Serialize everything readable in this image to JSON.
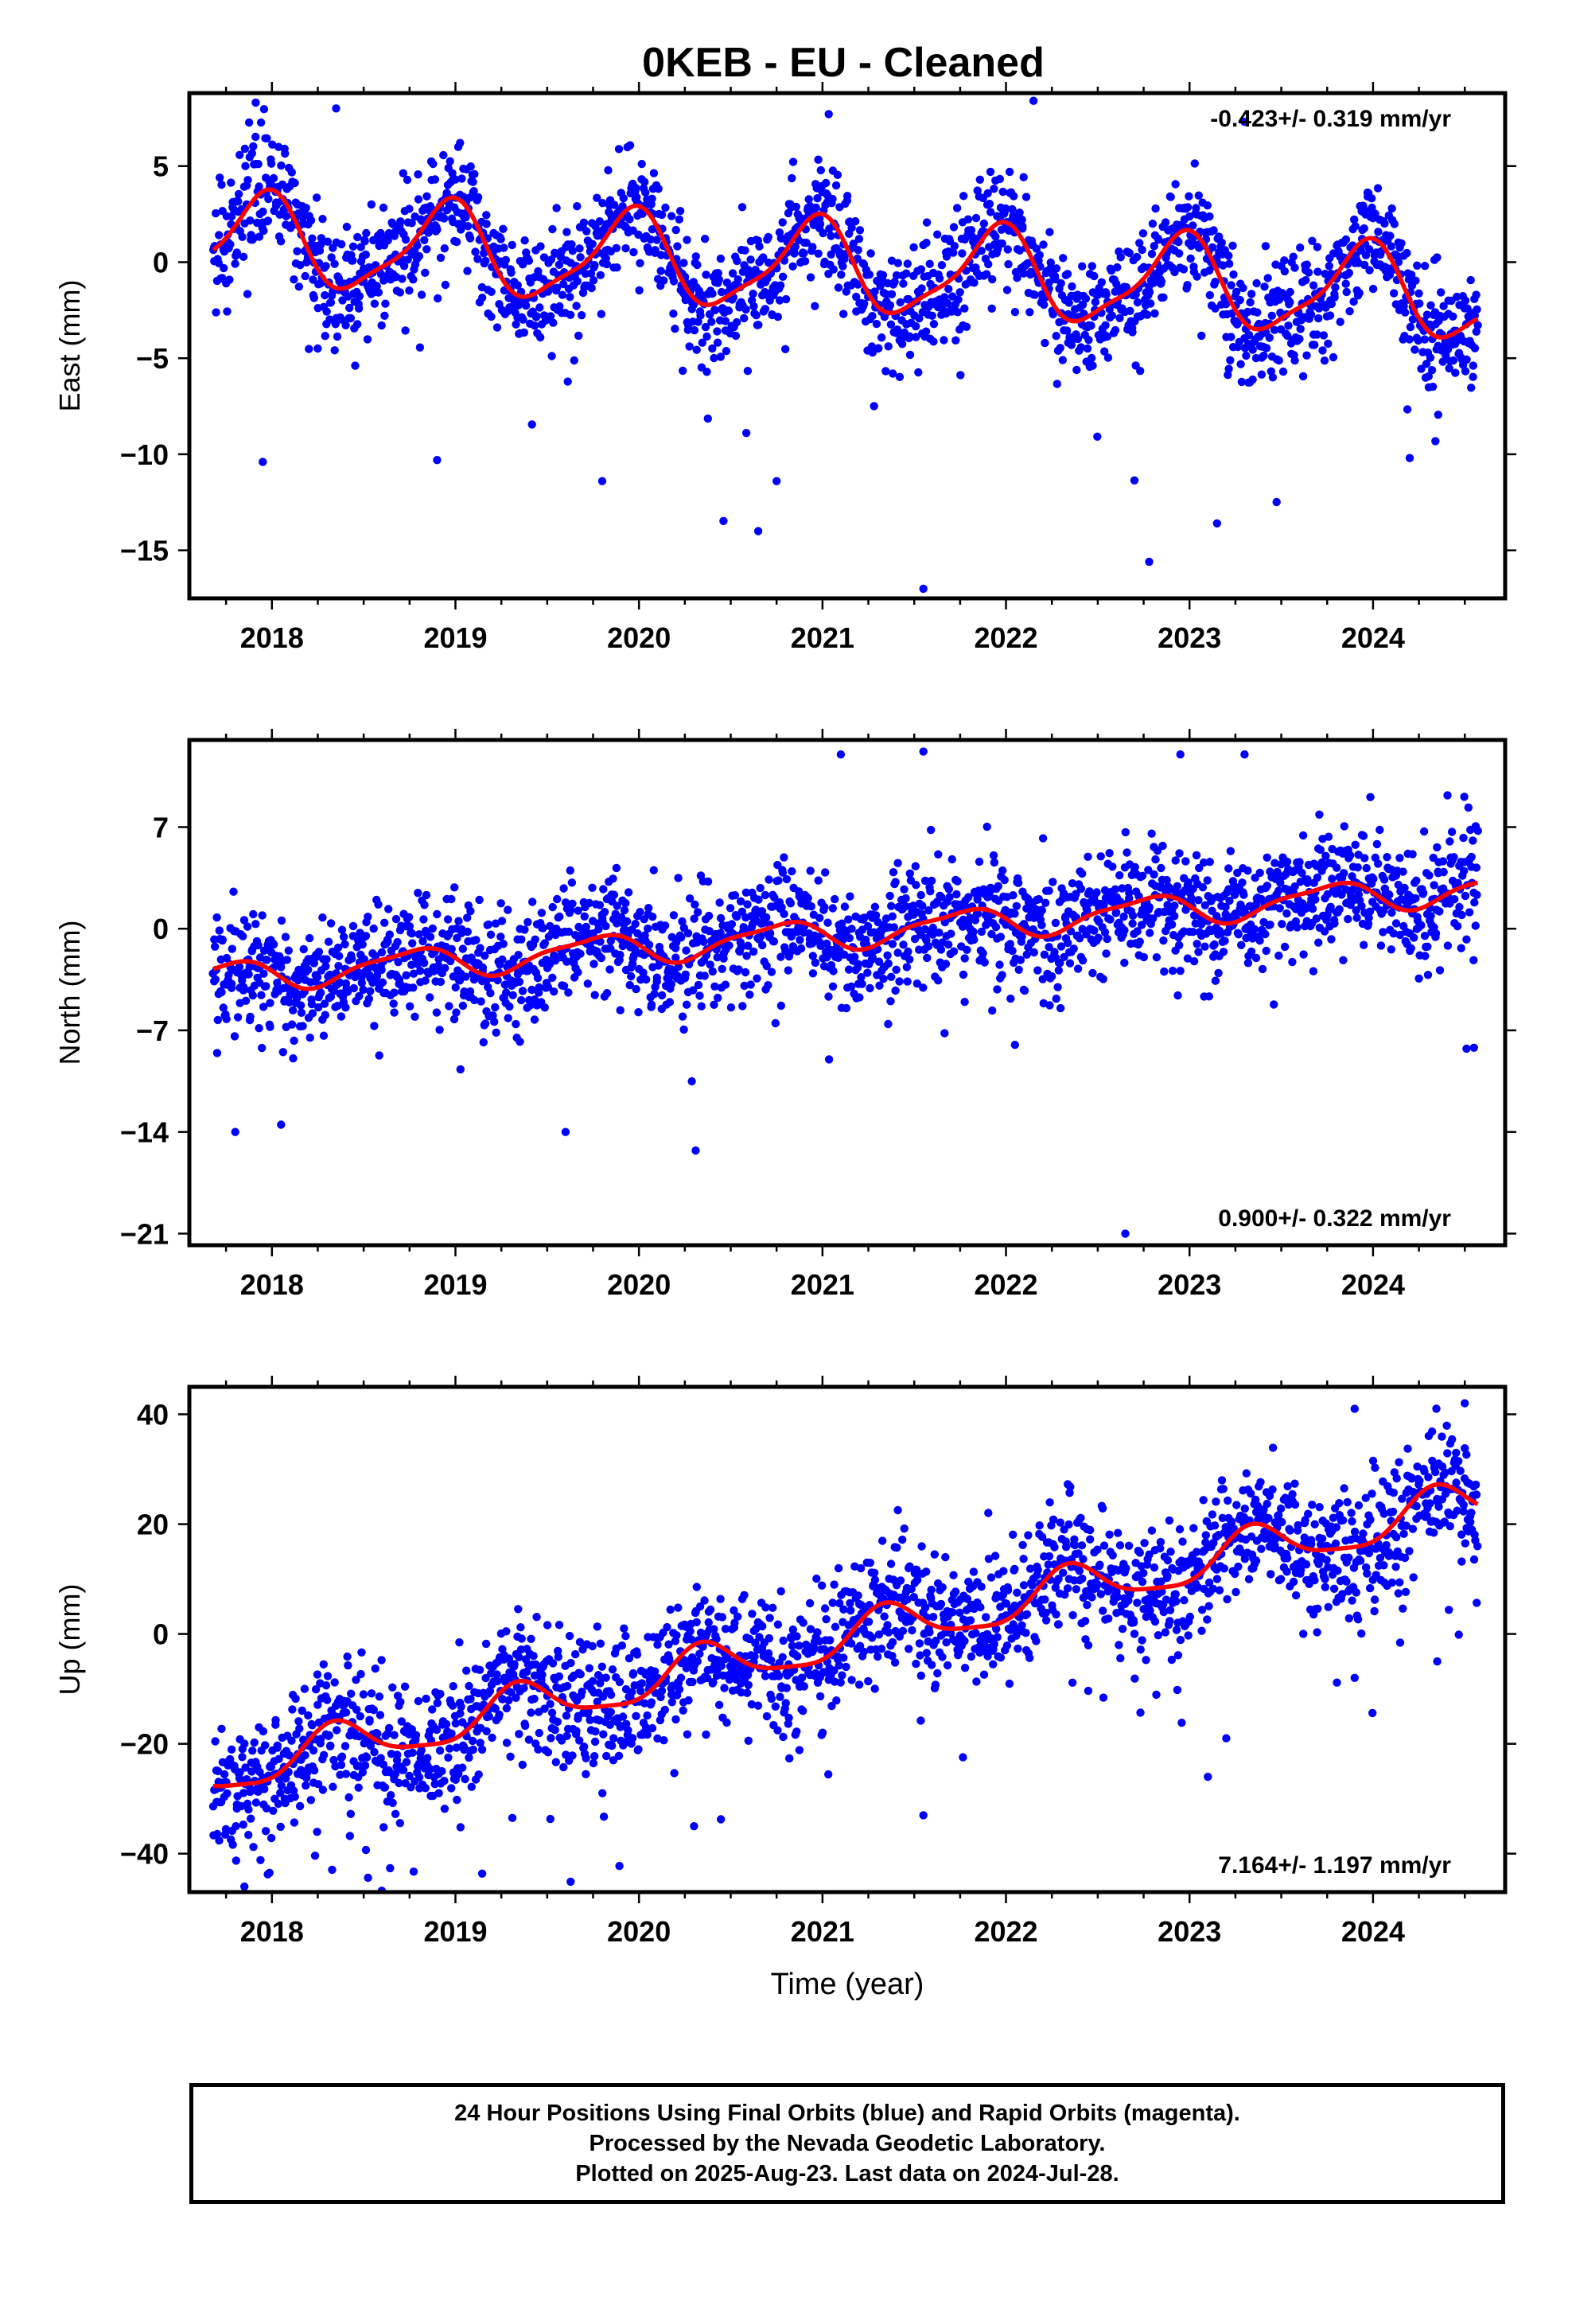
{
  "title": "0KEB  - EU - Cleaned",
  "footer": {
    "line1": "24 Hour Positions Using Final Orbits (blue) and Rapid Orbits (magenta).",
    "line2": "Processed by the Nevada Geodetic Laboratory.",
    "line3": "Plotted on 2025-Aug-23. Last data on 2024-Jul-28."
  },
  "colors": {
    "points": "#0000ff",
    "fit": "#ff0000",
    "axis": "#000000"
  },
  "chart_data": [
    {
      "type": "scatter",
      "name_hint": "east",
      "ylabel": "East (mm)",
      "xlabel": "",
      "rate_label": "-0.423+/- 0.319 mm/yr",
      "rate_position": "top-right",
      "xlim": [
        2017.55,
        2024.72
      ],
      "ylim": [
        -17.5,
        8.8
      ],
      "xticks": [
        2018,
        2019,
        2020,
        2021,
        2022,
        2023,
        2024
      ],
      "xtick_labels": [
        "2018",
        "2019",
        "2020",
        "2021",
        "2022",
        "2023",
        "2024"
      ],
      "yticks": [
        5,
        0,
        -5,
        -10,
        -15
      ],
      "ytick_labels": [
        "5",
        "0",
        "−10",
        "−15"
      ],
      "ytick_labels_full": [
        "5",
        "0",
        "−5",
        "−10",
        "−15"
      ],
      "trend": {
        "slope": -0.423,
        "t0": 2021.1,
        "offset": -0.3
      },
      "seasonal": {
        "annual_amp": 2.3,
        "annual_phase": 0.3,
        "semi_amp": 0.6,
        "semi_phase": 0.1
      },
      "noise_sd": 1.5,
      "outliers": [
        [
          2017.95,
          -10.4
        ],
        [
          2018.9,
          -10.3
        ],
        [
          2019.8,
          -11.4
        ],
        [
          2020.65,
          -14.0
        ],
        [
          2020.75,
          -11.4
        ],
        [
          2021.55,
          -17.0
        ],
        [
          2022.78,
          -15.6
        ],
        [
          2023.15,
          -13.6
        ],
        [
          2024.2,
          -10.2
        ],
        [
          2018.35,
          8.0
        ],
        [
          2022.15,
          8.4
        ],
        [
          2023.3,
          7.3
        ]
      ]
    },
    {
      "type": "scatter",
      "name_hint": "north",
      "ylabel": "North (mm)",
      "xlabel": "",
      "rate_label": "0.900+/- 0.322 mm/yr",
      "rate_position": "bottom-right",
      "xlim": [
        2017.55,
        2024.72
      ],
      "ylim": [
        -21.8,
        13.0
      ],
      "xticks": [
        2018,
        2019,
        2020,
        2021,
        2022,
        2023,
        2024
      ],
      "xtick_labels": [
        "2018",
        "2019",
        "2020",
        "2021",
        "2022",
        "2023",
        "2024"
      ],
      "yticks": [
        7,
        0,
        -7,
        -14,
        -21
      ],
      "ytick_labels_full": [
        "7",
        "0",
        "−7",
        "−14",
        "−21"
      ],
      "trend": {
        "slope": 0.9,
        "t0": 2021.1,
        "offset": -0.3
      },
      "seasonal": {
        "annual_amp": 1.0,
        "annual_phase": 0.5,
        "semi_amp": 0.3,
        "semi_phase": 0.2
      },
      "noise_sd": 2.0,
      "outliers": [
        [
          2017.8,
          -14.0
        ],
        [
          2018.05,
          -13.5
        ],
        [
          2019.6,
          -14.0
        ],
        [
          2022.65,
          -21.0
        ],
        [
          2021.1,
          12.0
        ],
        [
          2021.55,
          12.2
        ],
        [
          2022.95,
          12.0
        ],
        [
          2023.3,
          12.0
        ],
        [
          2024.55,
          -8.2
        ]
      ]
    },
    {
      "type": "scatter",
      "name_hint": "up",
      "ylabel": "Up (mm)",
      "xlabel": "Time (year)",
      "rate_label": "7.164+/- 1.197 mm/yr",
      "rate_position": "bottom-right",
      "xlim": [
        2017.55,
        2024.72
      ],
      "ylim": [
        -47.0,
        45.0
      ],
      "xticks": [
        2018,
        2019,
        2020,
        2021,
        2022,
        2023,
        2024
      ],
      "xtick_labels": [
        "2018",
        "2019",
        "2020",
        "2021",
        "2022",
        "2023",
        "2024"
      ],
      "yticks": [
        40,
        20,
        0,
        -20,
        -40
      ],
      "ytick_labels_full": [
        "40",
        "20",
        "0",
        "−20",
        "−40"
      ],
      "trend": {
        "slope": 7.164,
        "t0": 2021.1,
        "offset": -1.0
      },
      "seasonal": {
        "annual_amp": 4.0,
        "annual_phase": 0.9,
        "semi_amp": 1.0,
        "semi_phase": 0.3
      },
      "noise_sd": 6.0,
      "outliers": [
        [
          2017.85,
          -46.0
        ],
        [
          2020.3,
          -35.0
        ],
        [
          2021.55,
          -33.0
        ],
        [
          2023.1,
          -26.0
        ],
        [
          2023.2,
          -19.0
        ],
        [
          2023.9,
          -8.0
        ],
        [
          2024.35,
          -5.0
        ],
        [
          2024.5,
          42.0
        ],
        [
          2023.9,
          41.0
        ]
      ]
    }
  ]
}
